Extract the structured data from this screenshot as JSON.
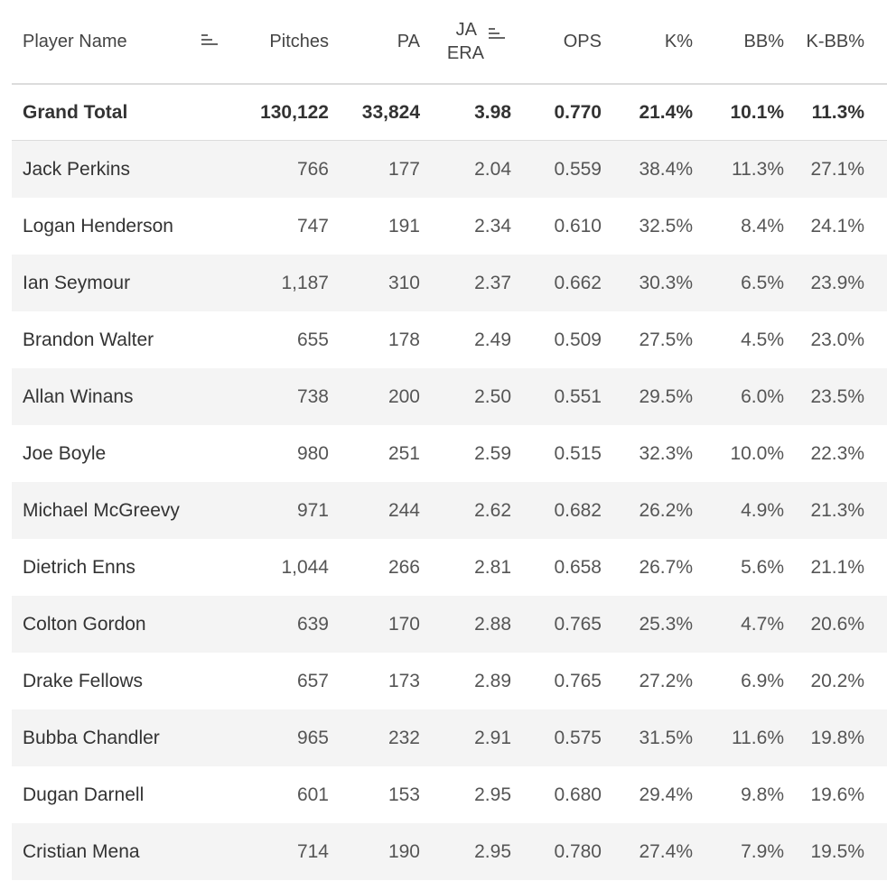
{
  "headers": {
    "player_name": "Player Name",
    "pitches": "Pitches",
    "pa": "PA",
    "ja_era_line1": "JA",
    "ja_era_line2": "ERA",
    "ops": "OPS",
    "k_pct": "K%",
    "bb_pct": "BB%",
    "k_bb_pct": "K-BB%"
  },
  "icons": {
    "player_sort": "sort-descending-icon",
    "era_sort": "sort-ascending-icon"
  },
  "grand_total": {
    "label": "Grand Total",
    "pitches": "130,122",
    "pa": "33,824",
    "ja_era": "3.98",
    "ops": "0.770",
    "k_pct": "21.4%",
    "bb_pct": "10.1%",
    "k_bb_pct": "11.3%"
  },
  "rows": [
    {
      "name": "Jack Perkins",
      "pitches": "766",
      "pa": "177",
      "ja_era": "2.04",
      "ops": "0.559",
      "k_pct": "38.4%",
      "bb_pct": "11.3%",
      "k_bb_pct": "27.1%"
    },
    {
      "name": "Logan Henderson",
      "pitches": "747",
      "pa": "191",
      "ja_era": "2.34",
      "ops": "0.610",
      "k_pct": "32.5%",
      "bb_pct": "8.4%",
      "k_bb_pct": "24.1%"
    },
    {
      "name": "Ian Seymour",
      "pitches": "1,187",
      "pa": "310",
      "ja_era": "2.37",
      "ops": "0.662",
      "k_pct": "30.3%",
      "bb_pct": "6.5%",
      "k_bb_pct": "23.9%"
    },
    {
      "name": "Brandon Walter",
      "pitches": "655",
      "pa": "178",
      "ja_era": "2.49",
      "ops": "0.509",
      "k_pct": "27.5%",
      "bb_pct": "4.5%",
      "k_bb_pct": "23.0%"
    },
    {
      "name": "Allan Winans",
      "pitches": "738",
      "pa": "200",
      "ja_era": "2.50",
      "ops": "0.551",
      "k_pct": "29.5%",
      "bb_pct": "6.0%",
      "k_bb_pct": "23.5%"
    },
    {
      "name": "Joe Boyle",
      "pitches": "980",
      "pa": "251",
      "ja_era": "2.59",
      "ops": "0.515",
      "k_pct": "32.3%",
      "bb_pct": "10.0%",
      "k_bb_pct": "22.3%"
    },
    {
      "name": "Michael McGreevy",
      "pitches": "971",
      "pa": "244",
      "ja_era": "2.62",
      "ops": "0.682",
      "k_pct": "26.2%",
      "bb_pct": "4.9%",
      "k_bb_pct": "21.3%"
    },
    {
      "name": "Dietrich Enns",
      "pitches": "1,044",
      "pa": "266",
      "ja_era": "2.81",
      "ops": "0.658",
      "k_pct": "26.7%",
      "bb_pct": "5.6%",
      "k_bb_pct": "21.1%"
    },
    {
      "name": "Colton Gordon",
      "pitches": "639",
      "pa": "170",
      "ja_era": "2.88",
      "ops": "0.765",
      "k_pct": "25.3%",
      "bb_pct": "4.7%",
      "k_bb_pct": "20.6%"
    },
    {
      "name": "Drake Fellows",
      "pitches": "657",
      "pa": "173",
      "ja_era": "2.89",
      "ops": "0.765",
      "k_pct": "27.2%",
      "bb_pct": "6.9%",
      "k_bb_pct": "20.2%"
    },
    {
      "name": "Bubba Chandler",
      "pitches": "965",
      "pa": "232",
      "ja_era": "2.91",
      "ops": "0.575",
      "k_pct": "31.5%",
      "bb_pct": "11.6%",
      "k_bb_pct": "19.8%"
    },
    {
      "name": "Dugan Darnell",
      "pitches": "601",
      "pa": "153",
      "ja_era": "2.95",
      "ops": "0.680",
      "k_pct": "29.4%",
      "bb_pct": "9.8%",
      "k_bb_pct": "19.6%"
    },
    {
      "name": "Cristian Mena",
      "pitches": "714",
      "pa": "190",
      "ja_era": "2.95",
      "ops": "0.780",
      "k_pct": "27.4%",
      "bb_pct": "7.9%",
      "k_bb_pct": "19.5%"
    }
  ]
}
